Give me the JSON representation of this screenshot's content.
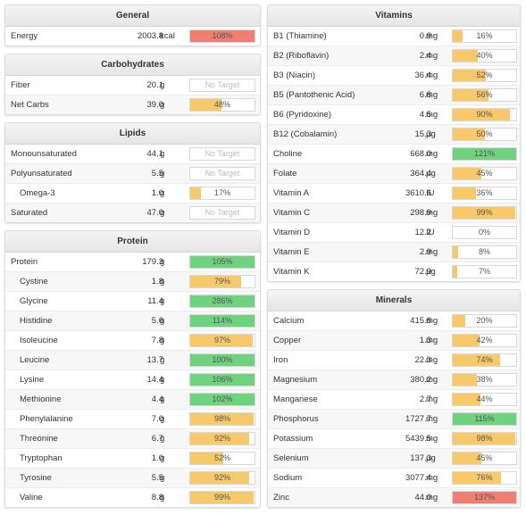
{
  "colors": {
    "yellow": "#f8c96a",
    "green": "#6fd27f",
    "red": "#ef7f73"
  },
  "sections": {
    "general": {
      "title": "General",
      "rows": [
        {
          "name": "Energy",
          "amount": "2003.8",
          "unit": "kcal",
          "pct": 108,
          "label": "108%",
          "color": "red"
        }
      ]
    },
    "carbs": {
      "title": "Carbohydrates",
      "rows": [
        {
          "name": "Fiber",
          "amount": "20.1",
          "unit": "g",
          "pct": 0,
          "label": "No Target",
          "color": "none"
        },
        {
          "name": "Net Carbs",
          "amount": "39.0",
          "unit": "g",
          "pct": 48,
          "label": "48%",
          "color": "yellow"
        }
      ]
    },
    "lipids": {
      "title": "Lipids",
      "rows": [
        {
          "name": "Monounsaturated",
          "amount": "44.1",
          "unit": "g",
          "pct": 0,
          "label": "No Target",
          "color": "none"
        },
        {
          "name": "Polyunsaturated",
          "amount": "5.5",
          "unit": "g",
          "pct": 0,
          "label": "No Target",
          "color": "none"
        },
        {
          "name": "Omega-3",
          "amount": "1.0",
          "unit": "g",
          "pct": 17,
          "label": "17%",
          "color": "yellow",
          "sub": true
        },
        {
          "name": "Saturated",
          "amount": "47.0",
          "unit": "g",
          "pct": 0,
          "label": "No Target",
          "color": "none"
        }
      ]
    },
    "protein": {
      "title": "Protein",
      "rows": [
        {
          "name": "Protein",
          "amount": "179.3",
          "unit": "g",
          "pct": 105,
          "label": "105%",
          "color": "green"
        },
        {
          "name": "Cystine",
          "amount": "1.8",
          "unit": "g",
          "pct": 79,
          "label": "79%",
          "color": "yellow",
          "sub": true
        },
        {
          "name": "Glycine",
          "amount": "11.4",
          "unit": "g",
          "pct": 286,
          "label": "286%",
          "color": "green",
          "sub": true
        },
        {
          "name": "Histidine",
          "amount": "5.6",
          "unit": "g",
          "pct": 114,
          "label": "114%",
          "color": "green",
          "sub": true
        },
        {
          "name": "Isoleucine",
          "amount": "7.8",
          "unit": "g",
          "pct": 97,
          "label": "97%",
          "color": "yellow",
          "sub": true
        },
        {
          "name": "Leucine",
          "amount": "13.7",
          "unit": "g",
          "pct": 100,
          "label": "100%",
          "color": "green",
          "sub": true
        },
        {
          "name": "Lysine",
          "amount": "14.4",
          "unit": "g",
          "pct": 106,
          "label": "106%",
          "color": "green",
          "sub": true
        },
        {
          "name": "Methionine",
          "amount": "4.4",
          "unit": "g",
          "pct": 102,
          "label": "102%",
          "color": "green",
          "sub": true
        },
        {
          "name": "Phenylalanine",
          "amount": "7.0",
          "unit": "g",
          "pct": 98,
          "label": "98%",
          "color": "yellow",
          "sub": true
        },
        {
          "name": "Threonine",
          "amount": "6.7",
          "unit": "g",
          "pct": 92,
          "label": "92%",
          "color": "yellow",
          "sub": true
        },
        {
          "name": "Tryptophan",
          "amount": "1.0",
          "unit": "g",
          "pct": 52,
          "label": "52%",
          "color": "yellow",
          "sub": true
        },
        {
          "name": "Tyrosine",
          "amount": "5.5",
          "unit": "g",
          "pct": 92,
          "label": "92%",
          "color": "yellow",
          "sub": true
        },
        {
          "name": "Valine",
          "amount": "8.8",
          "unit": "g",
          "pct": 99,
          "label": "99%",
          "color": "yellow",
          "sub": true
        }
      ]
    },
    "vitamins": {
      "title": "Vitamins",
      "rows": [
        {
          "name": "B1 (Thiamine)",
          "amount": "0.9",
          "unit": "mg",
          "pct": 16,
          "label": "16%",
          "color": "yellow"
        },
        {
          "name": "B2 (Riboflavin)",
          "amount": "2.4",
          "unit": "mg",
          "pct": 40,
          "label": "40%",
          "color": "yellow"
        },
        {
          "name": "B3 (Niacin)",
          "amount": "36.4",
          "unit": "mg",
          "pct": 52,
          "label": "52%",
          "color": "yellow"
        },
        {
          "name": "B5 (Pantothenic Acid)",
          "amount": "6.8",
          "unit": "mg",
          "pct": 56,
          "label": "56%",
          "color": "yellow"
        },
        {
          "name": "B6 (Pyridoxine)",
          "amount": "4.5",
          "unit": "mg",
          "pct": 90,
          "label": "90%",
          "color": "yellow"
        },
        {
          "name": "B12 (Cobalamin)",
          "amount": "15.3",
          "unit": "µg",
          "pct": 50,
          "label": "50%",
          "color": "yellow"
        },
        {
          "name": "Choline",
          "amount": "668.0",
          "unit": "mg",
          "pct": 121,
          "label": "121%",
          "color": "green"
        },
        {
          "name": "Folate",
          "amount": "364.4",
          "unit": "µg",
          "pct": 45,
          "label": "45%",
          "color": "yellow"
        },
        {
          "name": "Vitamin A",
          "amount": "3610.6",
          "unit": "IU",
          "pct": 36,
          "label": "36%",
          "color": "yellow"
        },
        {
          "name": "Vitamin C",
          "amount": "298.9",
          "unit": "mg",
          "pct": 99,
          "label": "99%",
          "color": "yellow"
        },
        {
          "name": "Vitamin D",
          "amount": "12.2",
          "unit": "IU",
          "pct": 0,
          "label": "0%",
          "color": "yellow"
        },
        {
          "name": "Vitamin E",
          "amount": "2.9",
          "unit": "mg",
          "pct": 8,
          "label": "8%",
          "color": "yellow"
        },
        {
          "name": "Vitamin K",
          "amount": "72.9",
          "unit": "µg",
          "pct": 7,
          "label": "7%",
          "color": "yellow"
        }
      ]
    },
    "minerals": {
      "title": "Minerals",
      "rows": [
        {
          "name": "Calcium",
          "amount": "415.8",
          "unit": "mg",
          "pct": 20,
          "label": "20%",
          "color": "yellow"
        },
        {
          "name": "Copper",
          "amount": "1.3",
          "unit": "mg",
          "pct": 42,
          "label": "42%",
          "color": "yellow"
        },
        {
          "name": "Iron",
          "amount": "22.3",
          "unit": "mg",
          "pct": 74,
          "label": "74%",
          "color": "yellow"
        },
        {
          "name": "Magnesium",
          "amount": "380.2",
          "unit": "mg",
          "pct": 38,
          "label": "38%",
          "color": "yellow"
        },
        {
          "name": "Manganese",
          "amount": "2.7",
          "unit": "mg",
          "pct": 44,
          "label": "44%",
          "color": "yellow"
        },
        {
          "name": "Phosphorus",
          "amount": "1727.7",
          "unit": "mg",
          "pct": 115,
          "label": "115%",
          "color": "green"
        },
        {
          "name": "Potassium",
          "amount": "5439.5",
          "unit": "mg",
          "pct": 98,
          "label": "98%",
          "color": "yellow"
        },
        {
          "name": "Selenium",
          "amount": "137.3",
          "unit": "µg",
          "pct": 45,
          "label": "45%",
          "color": "yellow"
        },
        {
          "name": "Sodium",
          "amount": "3077.4",
          "unit": "mg",
          "pct": 76,
          "label": "76%",
          "color": "yellow"
        },
        {
          "name": "Zinc",
          "amount": "44.0",
          "unit": "mg",
          "pct": 137,
          "label": "137%",
          "color": "red"
        }
      ]
    }
  }
}
